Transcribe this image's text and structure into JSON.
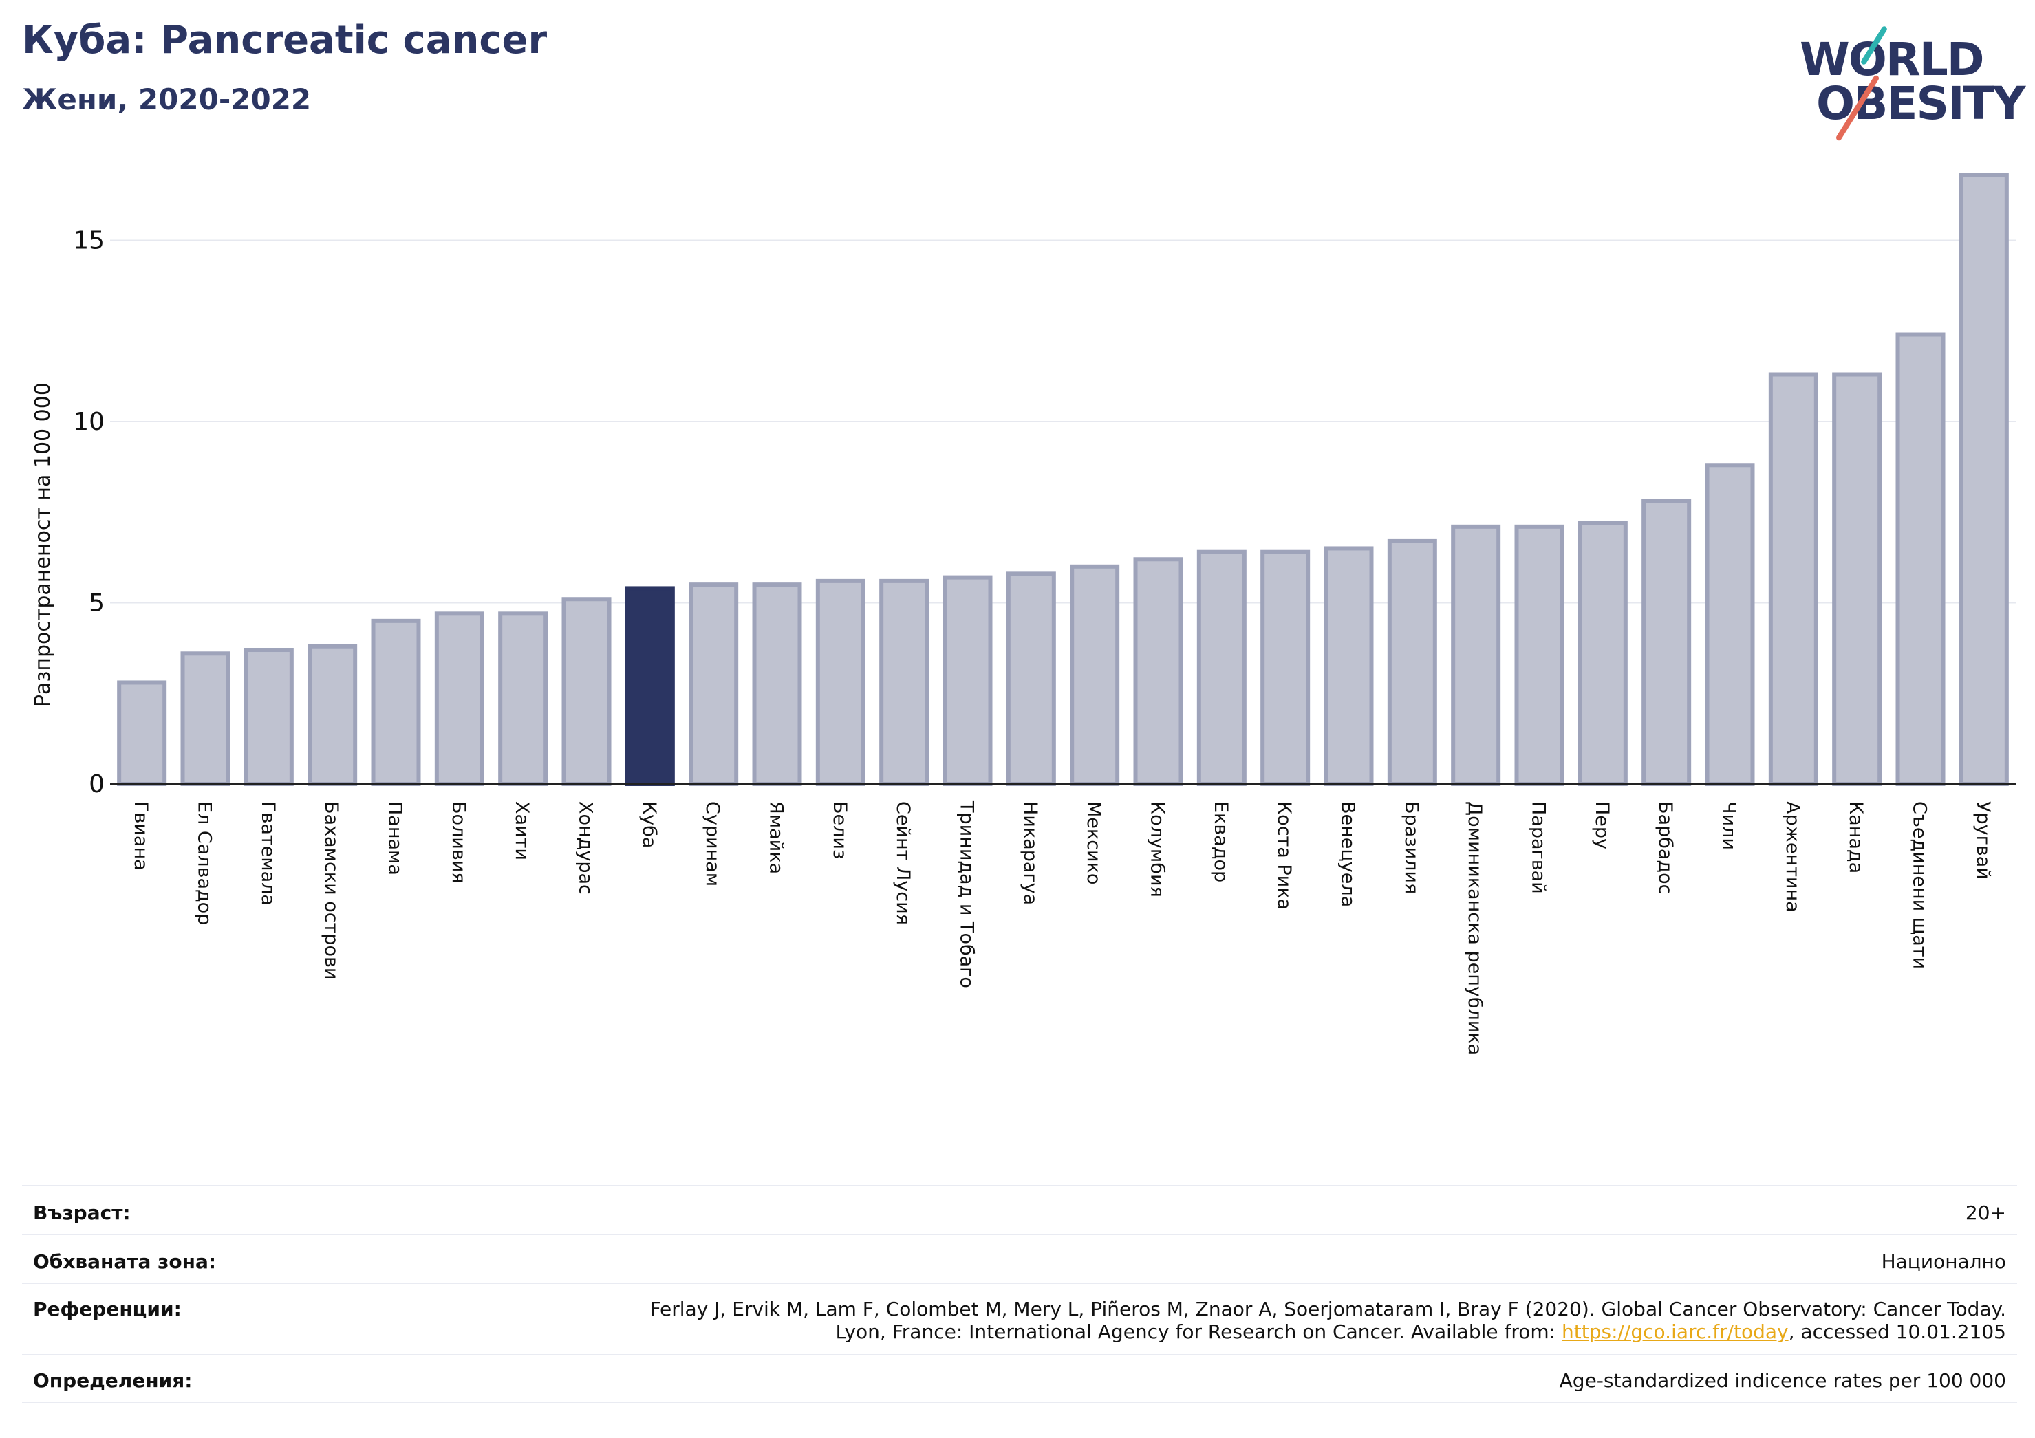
{
  "header": {
    "title": "Куба: Pancreatic cancer",
    "subtitle": "Жени, 2020-2022"
  },
  "logo": {
    "line1": "WORLD",
    "line2": "OBESITY"
  },
  "colors": {
    "highlight": "#2b3562",
    "bar": "#bfc2d0",
    "bar_stroke": "#9ea3ba",
    "logo_teal": "#2db3b0",
    "logo_red": "#e46a57",
    "link": "#e8a817"
  },
  "chart_data": {
    "type": "bar",
    "ylabel": "Разпространеност  на 100 000",
    "ylim": [
      0,
      17
    ],
    "yticks": [
      0,
      5,
      10,
      15
    ],
    "grid": true,
    "highlight": "Куба",
    "categories": [
      "Гвиана",
      "Ел Салвадор",
      "Гватемала",
      "Бахамски острови",
      "Панама",
      "Боливия",
      "Хаити",
      "Хондурас",
      "Куба",
      "Суринам",
      "Ямайка",
      "Белиз",
      "Сейнт Лусия",
      "Тринидад и Тобаго",
      "Никарагуа",
      "Мексико",
      "Колумбия",
      "Еквадор",
      "Коста Рика",
      "Венецуела",
      "Бразилия",
      "Доминиканска република",
      "Парагвай",
      "Перу",
      "Барбадос",
      "Чили",
      "Аржентина",
      "Канада",
      "Съединени щати",
      "Уругвай"
    ],
    "values": [
      2.8,
      3.6,
      3.7,
      3.8,
      4.5,
      4.7,
      4.7,
      5.1,
      5.4,
      5.5,
      5.5,
      5.6,
      5.6,
      5.7,
      5.8,
      6.0,
      6.2,
      6.4,
      6.4,
      6.5,
      6.7,
      7.1,
      7.1,
      7.2,
      7.8,
      8.8,
      11.3,
      11.3,
      12.4,
      16.8
    ]
  },
  "info": {
    "age_label": "Възраст:",
    "age_value": "20+",
    "area_label": "Обхваната зона:",
    "area_value": "Национално",
    "ref_label": "Референции:",
    "ref_line1": "Ferlay J, Ervik M, Lam F, Colombet M, Mery L, Piñeros M, Znaor A, Soerjomataram I, Bray F (2020). Global Cancer Observatory: Cancer Today.",
    "ref_line2_prefix": "Lyon, France: International Agency for Research on Cancer. Available from: ",
    "ref_link": "https://gco.iarc.fr/today",
    "ref_line2_suffix": ", accessed 10.01.2105",
    "def_label": "Определения:",
    "def_value": "Age-standardized indicence rates per 100 000"
  }
}
